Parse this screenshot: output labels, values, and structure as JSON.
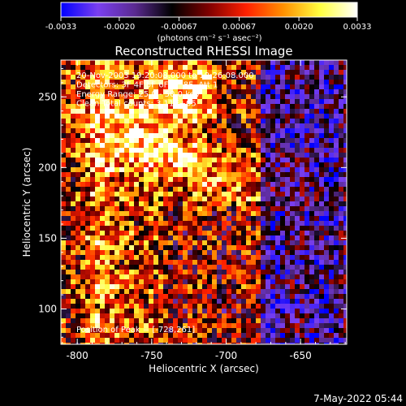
{
  "colorbar": {
    "ticks": [
      "-0.0033",
      "-0.0020",
      "-0.00067",
      "0.00067",
      "0.0020",
      "0.0033"
    ],
    "tick_values": [
      -0.0033,
      -0.002,
      -0.00067,
      0.00067,
      0.002,
      0.0033
    ],
    "range": [
      -0.0033,
      0.0033
    ],
    "unit_label": "(photons cm⁻² s⁻¹ asec⁻²)"
  },
  "chart_data": {
    "type": "heatmap",
    "title": "Reconstructed RHESSI Image",
    "xlabel": "Heliocentric X (arcsec)",
    "ylabel": "Heliocentric Y (arcsec)",
    "xlim": [
      -811,
      -619
    ],
    "ylim": [
      75,
      276
    ],
    "xticks": [
      -800,
      -750,
      -700,
      -650
    ],
    "xtick_labels": [
      "-800",
      "-750",
      "-700",
      "-650"
    ],
    "yticks": [
      100,
      150,
      200,
      250
    ],
    "ytick_labels": [
      "100",
      "150",
      "200",
      "250"
    ],
    "info_lines": [
      "20-Nov-2003 19:20:08.000 to 19:26:08.000",
      "Detectors: 3F 4F 5F 6F 7F 8F, Att 1",
      "Energy Range: 25.0 - 50.0 keV",
      "Clean     Total counts: 3.11E+05"
    ],
    "peak_text": "Position of Peak = [-728,261]",
    "peak_position": [
      -728,
      261
    ],
    "colormap": [
      "#0000ff",
      "#7a3ff0",
      "#5a2a90",
      "#000000",
      "#800000",
      "#ff2000",
      "#ff9000",
      "#ffff40",
      "#ffffff"
    ]
  },
  "footer": {
    "timestamp": "7-May-2022 05:44"
  }
}
